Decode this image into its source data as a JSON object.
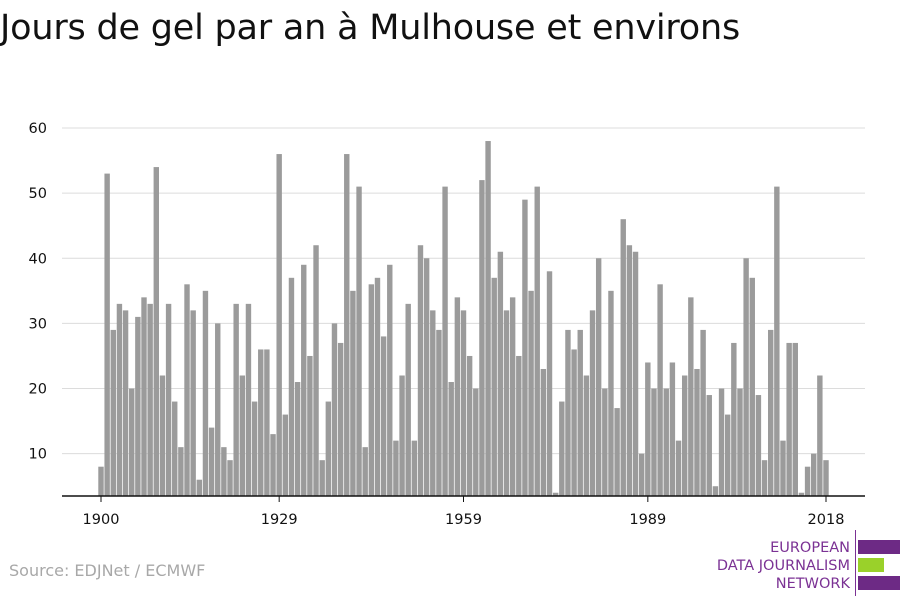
{
  "title": "Jours de gel par an à Mulhouse et environs",
  "source": "Source: EDJNet / ECMWF",
  "logo": {
    "line1": "EUROPEAN",
    "line2": "DATA JOURNALISM",
    "line3": "NETWORK",
    "colors": {
      "purple": "#6d2a85",
      "green": "#9ad12a"
    }
  },
  "chart_data": {
    "type": "bar",
    "title": "Jours de gel par an à Mulhouse et environs",
    "xlabel": "",
    "ylabel": "",
    "x": [
      1900,
      1901,
      1902,
      1903,
      1904,
      1905,
      1906,
      1907,
      1908,
      1909,
      1910,
      1911,
      1912,
      1913,
      1914,
      1915,
      1916,
      1917,
      1918,
      1919,
      1920,
      1921,
      1922,
      1923,
      1924,
      1925,
      1926,
      1927,
      1928,
      1929,
      1930,
      1931,
      1932,
      1933,
      1934,
      1935,
      1936,
      1937,
      1938,
      1939,
      1940,
      1941,
      1942,
      1943,
      1944,
      1945,
      1946,
      1947,
      1948,
      1949,
      1950,
      1951,
      1952,
      1953,
      1954,
      1955,
      1956,
      1957,
      1958,
      1959,
      1960,
      1961,
      1962,
      1963,
      1964,
      1965,
      1966,
      1967,
      1968,
      1969,
      1970,
      1971,
      1972,
      1973,
      1974,
      1975,
      1976,
      1977,
      1978,
      1979,
      1980,
      1981,
      1982,
      1983,
      1984,
      1985,
      1986,
      1987,
      1988,
      1989,
      1990,
      1991,
      1992,
      1993,
      1994,
      1995,
      1996,
      1997,
      1998,
      1999,
      2000,
      2001,
      2002,
      2003,
      2004,
      2005,
      2006,
      2007,
      2008,
      2009,
      2010,
      2011,
      2012,
      2013,
      2014,
      2015,
      2016,
      2017,
      2018
    ],
    "values": [
      8,
      53,
      29,
      33,
      32,
      20,
      31,
      34,
      33,
      54,
      22,
      33,
      18,
      11,
      36,
      32,
      6,
      35,
      14,
      30,
      11,
      9,
      33,
      22,
      33,
      18,
      26,
      26,
      13,
      56,
      16,
      37,
      21,
      39,
      25,
      42,
      9,
      18,
      30,
      27,
      56,
      35,
      51,
      11,
      36,
      37,
      28,
      39,
      12,
      22,
      33,
      12,
      42,
      40,
      32,
      29,
      51,
      21,
      34,
      32,
      25,
      20,
      52,
      58,
      37,
      41,
      32,
      34,
      25,
      49,
      35,
      51,
      23,
      38,
      4,
      18,
      29,
      26,
      29,
      22,
      32,
      40,
      20,
      35,
      17,
      46,
      42,
      41,
      10,
      24,
      20,
      36,
      20,
      24,
      12,
      22,
      34,
      23,
      29,
      19,
      5,
      20,
      16,
      27,
      20,
      40,
      37,
      19,
      9,
      29,
      51,
      12,
      27,
      27,
      4,
      8,
      10,
      22,
      9
    ],
    "ylim": [
      3.5,
      60
    ],
    "yticks": [
      10,
      20,
      30,
      40,
      50,
      60
    ],
    "xticks": [
      1900,
      1929,
      1959,
      1989,
      2018
    ],
    "bar_color": "#9b9b9b",
    "grid": true,
    "legend": "none"
  }
}
